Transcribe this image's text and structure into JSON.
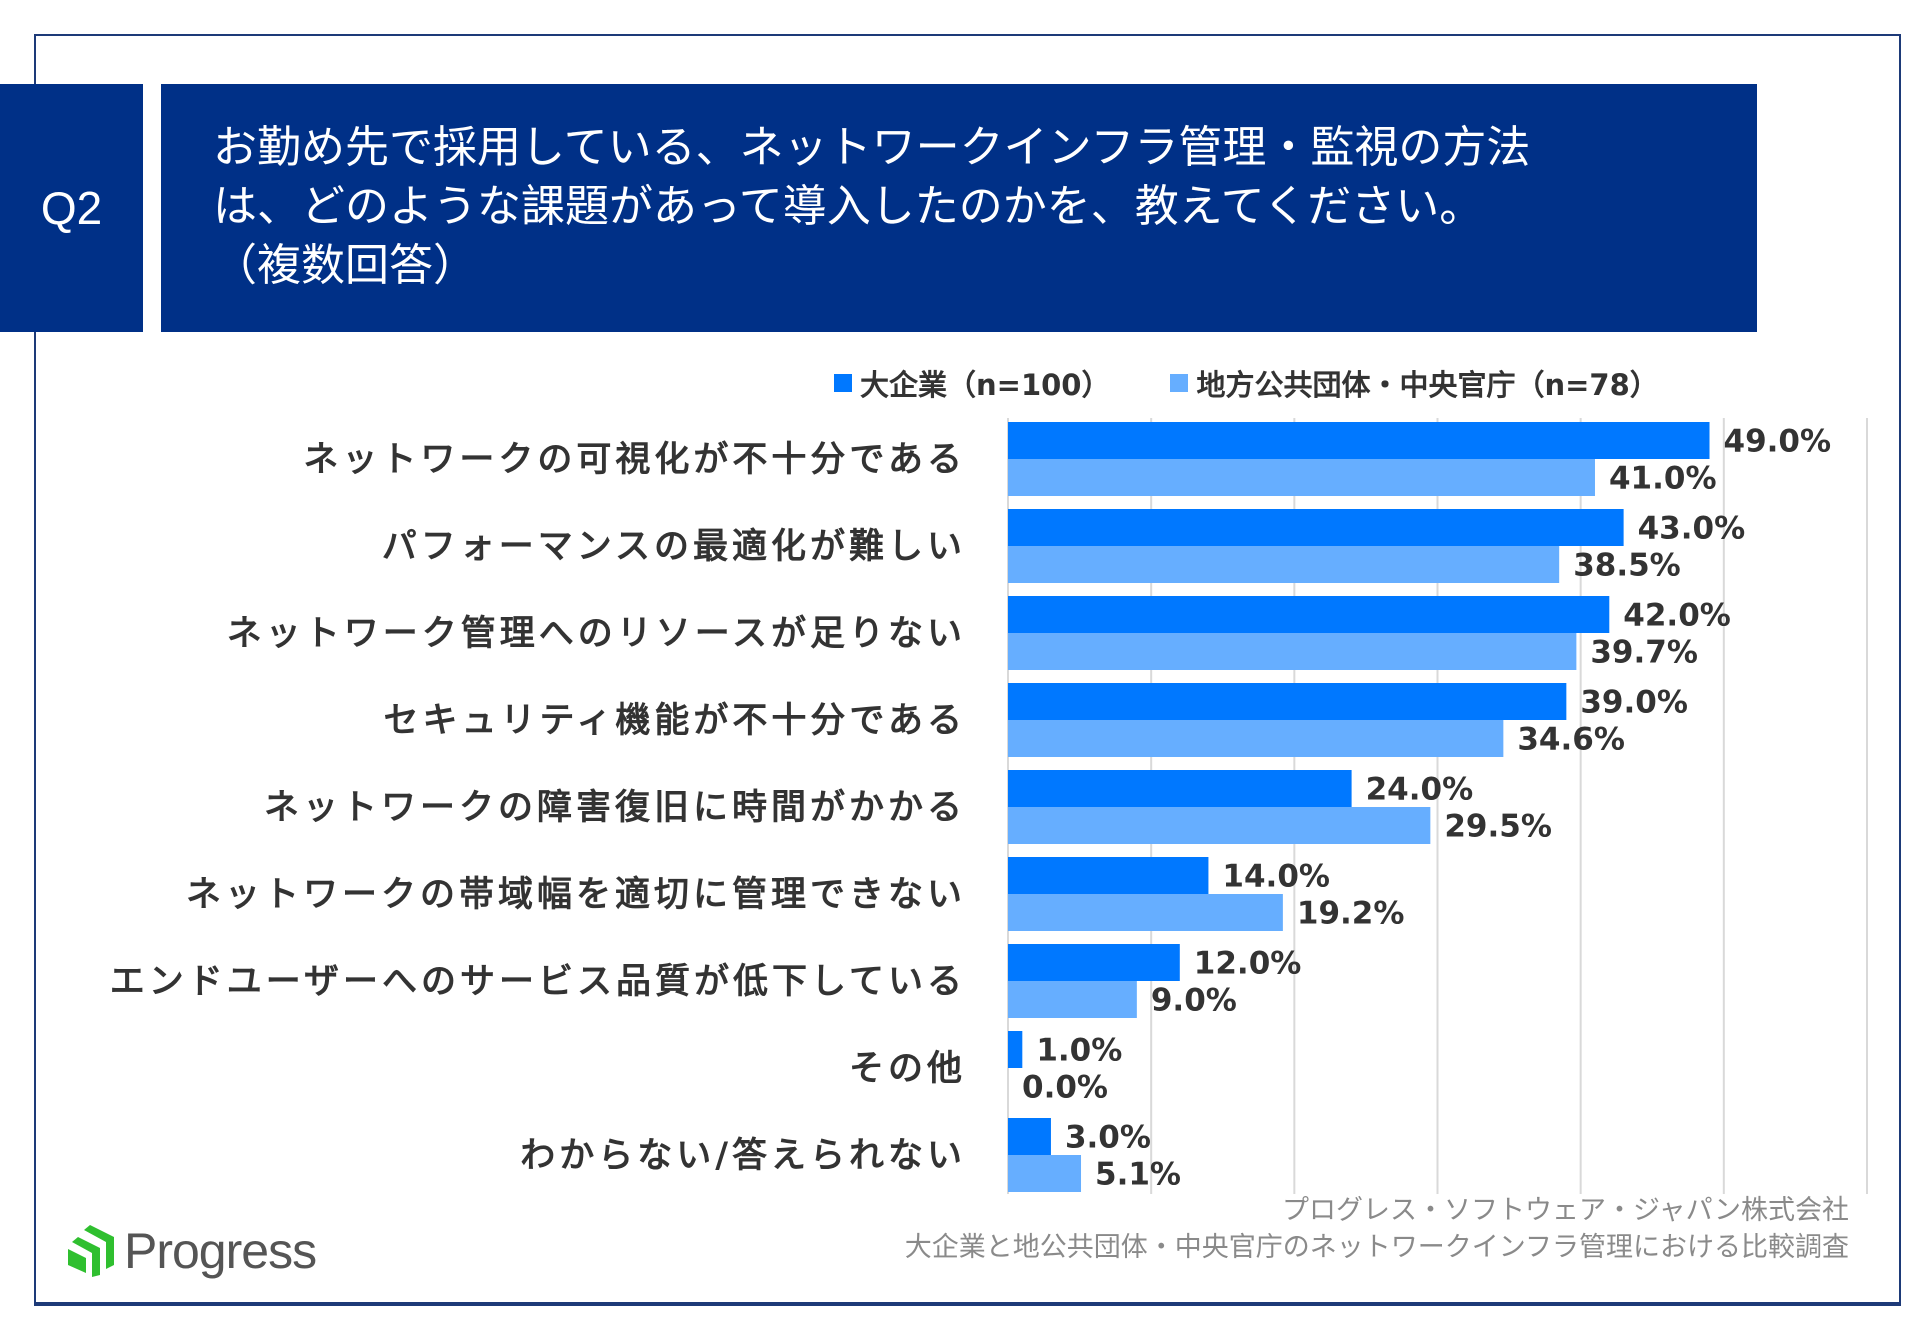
{
  "question_number": "Q2",
  "title_lines": [
    "お勤め先で採用している、ネットワークインフラ管理・監視の方法",
    "は、どのような課題があって導入したのかを、教えてください。",
    "（複数回答）"
  ],
  "footer": {
    "company": "プログレス・ソフトウェア・ジャパン株式会社",
    "survey": "大企業と地公共団体・中央官庁のネットワークインフラ管理における比較調査"
  },
  "logo_text": "Progress",
  "colors": {
    "header_bg": "#003087",
    "series1": "#0078ff",
    "series2": "#66aeff",
    "logo_green": "#2fbf2f"
  },
  "chart_data": {
    "type": "bar",
    "orientation": "horizontal",
    "categories": [
      "ネットワークの可視化が不十分である",
      "パフォーマンスの最適化が難しい",
      "ネットワーク管理へのリソースが足りない",
      "セキュリティ機能が不十分である",
      "ネットワークの障害復旧に時間がかかる",
      "ネットワークの帯域幅を適切に管理できない",
      "エンドユーザーへのサービス品質が低下している",
      "その他",
      "わからない/答えられない"
    ],
    "series": [
      {
        "name": "大企業（n=100）",
        "values": [
          49.0,
          43.0,
          42.0,
          39.0,
          24.0,
          14.0,
          12.0,
          1.0,
          3.0
        ],
        "labels": [
          "49.0%",
          "43.0%",
          "42.0%",
          "39.0%",
          "24.0%",
          "14.0%",
          "12.0%",
          "1.0%",
          "3.0%"
        ]
      },
      {
        "name": "地方公共団体・中央官庁（n=78）",
        "values": [
          41.0,
          38.5,
          39.7,
          34.6,
          29.5,
          19.2,
          9.0,
          0.0,
          5.1
        ],
        "labels": [
          "41.0%",
          "38.5%",
          "39.7%",
          "34.6%",
          "29.5%",
          "19.2%",
          "9.0%",
          "0.0%",
          "5.1%"
        ]
      }
    ],
    "xlim": [
      0,
      60
    ],
    "grid": true,
    "legend": "top"
  }
}
